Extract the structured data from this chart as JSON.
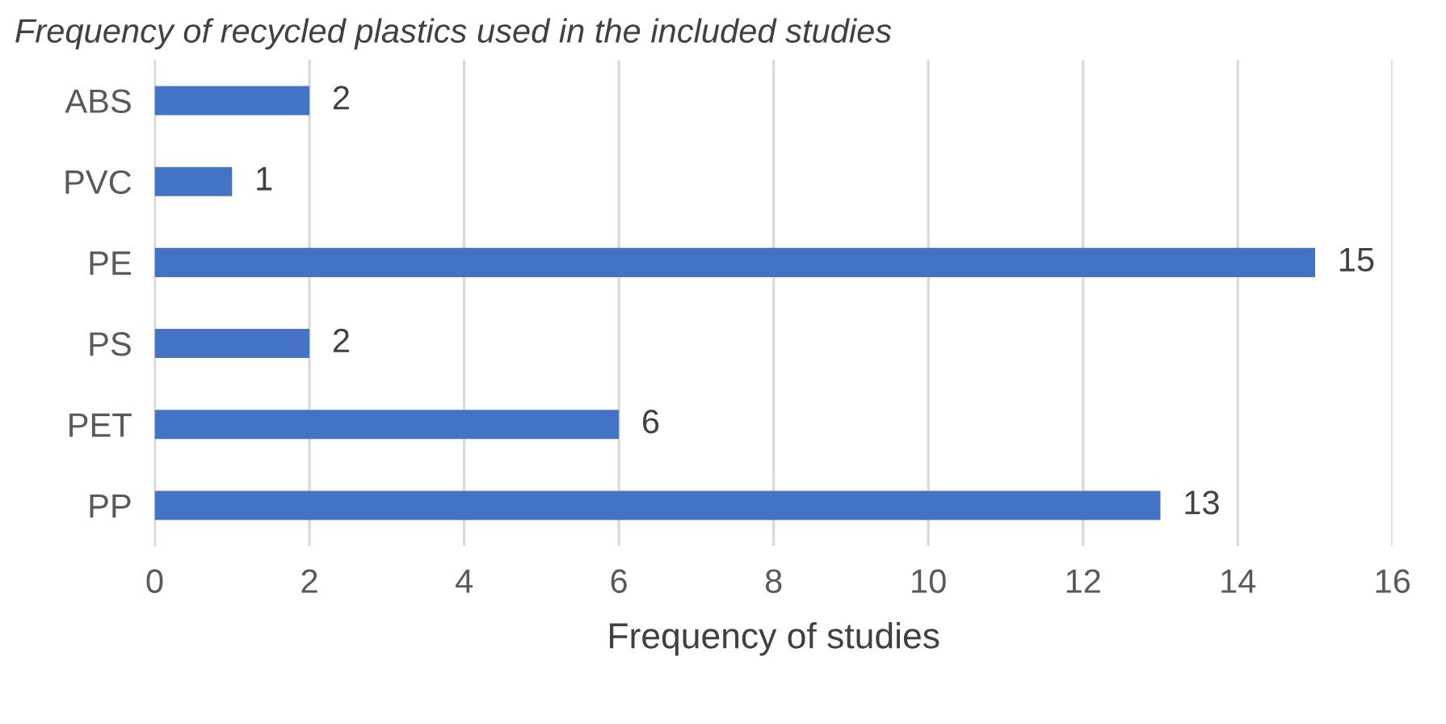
{
  "chart_data": {
    "type": "bar",
    "orientation": "horizontal",
    "title": "Frequency of recycled plastics used in the included studies",
    "xlabel": "Frequency of studies",
    "categories": [
      "ABS",
      "PVC",
      "PE",
      "PS",
      "PET",
      "PP"
    ],
    "values": [
      2,
      1,
      15,
      2,
      6,
      13
    ],
    "color": "#4472c4",
    "xlim": [
      0,
      16
    ],
    "xticks": [
      0,
      2,
      4,
      6,
      8,
      10,
      12,
      14,
      16
    ],
    "grid": "x",
    "data_labels": true
  }
}
